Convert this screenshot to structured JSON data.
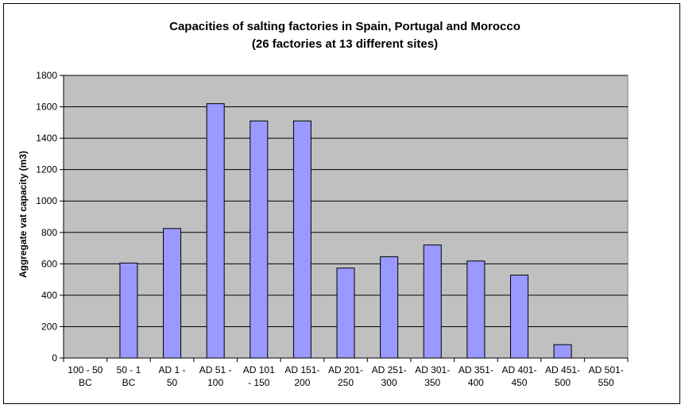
{
  "chart_data": {
    "type": "bar",
    "title": "Capacities of salting factories in Spain, Portugal and Morocco",
    "subtitle": "(26 factories at 13 different sites)",
    "xlabel": "",
    "ylabel": "Aggregate vat capacity (m3)",
    "ylim": [
      0,
      1800
    ],
    "yticks": [
      "0",
      "200",
      "400",
      "600",
      "800",
      "1000",
      "1200",
      "1400",
      "1600",
      "1800"
    ],
    "grid": true,
    "legend": "none",
    "bar_color": "#9999ff",
    "plot_background": "#c0c0c0",
    "categories": [
      [
        "100 - 50",
        "BC"
      ],
      [
        "50 - 1",
        "BC"
      ],
      [
        "AD 1 -",
        "50"
      ],
      [
        "AD 51 -",
        "100"
      ],
      [
        "AD 101",
        "- 150"
      ],
      [
        "AD 151-",
        "200"
      ],
      [
        "AD 201-",
        "250"
      ],
      [
        "AD 251-",
        "300"
      ],
      [
        "AD 301-",
        "350"
      ],
      [
        "AD 351-",
        "400"
      ],
      [
        "AD 401-",
        "450"
      ],
      [
        "AD 451-",
        "500"
      ],
      [
        "AD 501-",
        "550"
      ]
    ],
    "values": [
      0,
      605,
      825,
      1620,
      1510,
      1510,
      573,
      645,
      720,
      618,
      528,
      85,
      0
    ]
  }
}
